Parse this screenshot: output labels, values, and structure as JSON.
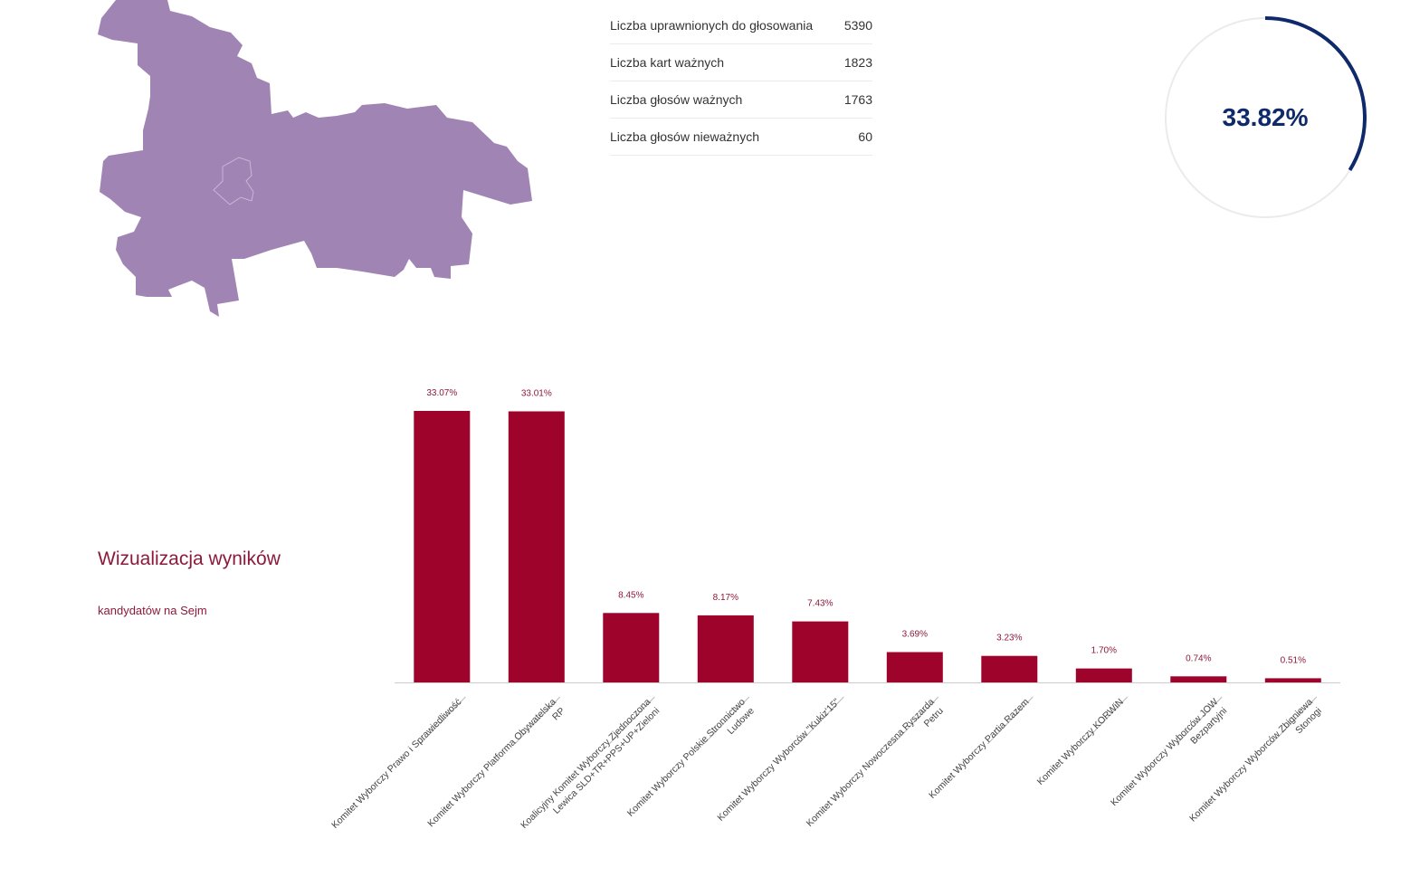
{
  "map": {
    "fill_color": "#a084b4",
    "outline_color": "#c9b6d6"
  },
  "stats": [
    {
      "label": "Liczba uprawnionych do głosowania",
      "value": "5390"
    },
    {
      "label": "Liczba kart ważnych",
      "value": "1823"
    },
    {
      "label": "Liczba głosów ważnych",
      "value": "1763"
    },
    {
      "label": "Liczba głosów nieważnych",
      "value": "60"
    }
  ],
  "turnout": {
    "label": "33.82%",
    "value": 33.82,
    "color": "#0f2a6b",
    "track_color": "#ebebeb"
  },
  "visualization": {
    "title": "Wizualizacja wyników",
    "subtitle": "kandydatów na Sejm"
  },
  "chart_data": {
    "type": "bar",
    "bar_color": "#9e032b",
    "ylim": [
      0,
      33.07
    ],
    "categories": [
      [
        "Komitet Wyborczy Prawo i Sprawiedliwość"
      ],
      [
        "Komitet Wyborczy Platforma Obywatelska",
        "RP"
      ],
      [
        "Koalicyjny Komitet Wyborczy Zjednoczona",
        "Lewica SLD+TR+PPS+UP+Zieloni"
      ],
      [
        "Komitet Wyborczy Polskie Stronnictwo",
        "Ludowe"
      ],
      [
        "Komitet Wyborczy Wyborców \"Kukiz'15\""
      ],
      [
        "Komitet Wyborczy Nowoczesna Ryszarda",
        "Petru"
      ],
      [
        "Komitet Wyborczy Partia Razem"
      ],
      [
        "Komitet Wyborczy KORWiN"
      ],
      [
        "Komitet Wyborczy Wyborców JOW",
        "Bezpartyjni"
      ],
      [
        "Komitet Wyborczy Wyborców Zbigniewa",
        "Stonogi"
      ]
    ],
    "values": [
      33.07,
      33.01,
      8.45,
      8.17,
      7.43,
      3.69,
      3.23,
      1.7,
      0.74,
      0.51
    ],
    "value_labels": [
      "33.07%",
      "33.01%",
      "8.45%",
      "8.17%",
      "7.43%",
      "3.69%",
      "3.23%",
      "1.70%",
      "0.74%",
      "0.51%"
    ]
  }
}
